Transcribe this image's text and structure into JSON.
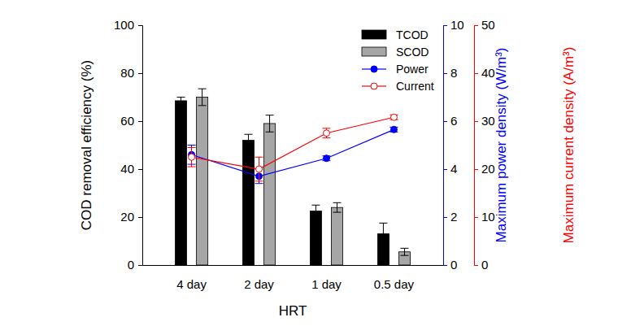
{
  "chart_data": {
    "type": "bar",
    "x_label": "HRT",
    "y_label": "COD removal efficiency (%)",
    "y2_label": "Maximum power density (W/m³)",
    "y3_label": "Maximum current density (A/m³)",
    "categories": [
      "4 day",
      "2 day",
      "1 day",
      "0.5 day"
    ],
    "series": [
      {
        "name": "TCOD",
        "type": "bar",
        "color": "#000000",
        "values": [
          68.5,
          52,
          22.5,
          13
        ],
        "errors": [
          1.5,
          2.5,
          2.5,
          4.5
        ]
      },
      {
        "name": "SCOD",
        "type": "bar",
        "color": "#a6a6a6",
        "values": [
          70,
          59,
          24,
          5.5
        ],
        "errors": [
          3.5,
          3.5,
          2,
          1.5
        ]
      },
      {
        "name": "Power",
        "type": "line",
        "axis": "y2",
        "color": "#0000ff",
        "marker": "circle",
        "values": [
          4.6,
          3.7,
          4.45,
          5.65
        ],
        "errors": [
          0.4,
          0.3,
          0.1,
          0.1
        ]
      },
      {
        "name": "Current",
        "type": "line",
        "axis": "y3",
        "color": "#ff0000",
        "marker": "open-circle",
        "values": [
          22.5,
          20,
          27.5,
          30.8
        ],
        "errors": [
          2,
          2.5,
          1,
          0.5
        ]
      }
    ],
    "ylim": [
      0,
      100
    ],
    "yticks": [
      0,
      20,
      40,
      60,
      80,
      100
    ],
    "y2lim": [
      0,
      10
    ],
    "y2ticks": [
      0,
      2,
      4,
      6,
      8,
      10
    ],
    "y3lim": [
      0,
      50
    ],
    "y3ticks": [
      0,
      10,
      20,
      30,
      40,
      50
    ],
    "legend": "upper right"
  }
}
